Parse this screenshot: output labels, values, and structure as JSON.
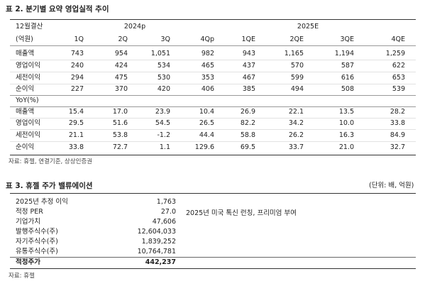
{
  "table2": {
    "title": "표 2. 분기별 요약 영업실적 추이",
    "header": {
      "fiscal": "12월결산",
      "unit": "(억원)",
      "groups": [
        "2024p",
        "2025E"
      ],
      "quarters": [
        "1Q",
        "2Q",
        "3Q",
        "4Qp",
        "1QE",
        "2QE",
        "3QE",
        "4QE"
      ]
    },
    "rows": [
      {
        "label": "매출액",
        "values": [
          "743",
          "954",
          "1,051",
          "982",
          "943",
          "1,165",
          "1,194",
          "1,259"
        ]
      },
      {
        "label": "영업이익",
        "values": [
          "240",
          "424",
          "534",
          "465",
          "437",
          "570",
          "587",
          "622"
        ]
      },
      {
        "label": "세전이익",
        "values": [
          "294",
          "475",
          "530",
          "353",
          "467",
          "599",
          "616",
          "653"
        ]
      },
      {
        "label": "순이익",
        "values": [
          "227",
          "370",
          "420",
          "406",
          "385",
          "494",
          "508",
          "539"
        ]
      }
    ],
    "yoy_label": "YoY(%)",
    "yoy_rows": [
      {
        "label": "매출액",
        "values": [
          "15.4",
          "17.0",
          "23.9",
          "10.4",
          "26.9",
          "22.1",
          "13.5",
          "28.2"
        ]
      },
      {
        "label": "영업이익",
        "values": [
          "29.5",
          "51.6",
          "54.5",
          "26.5",
          "82.2",
          "34.2",
          "10.0",
          "33.8"
        ]
      },
      {
        "label": "세전이익",
        "values": [
          "21.1",
          "53.8",
          "-1.2",
          "44.4",
          "58.8",
          "26.2",
          "16.3",
          "84.9"
        ]
      },
      {
        "label": "순이익",
        "values": [
          "33.8",
          "72.7",
          "1.1",
          "129.6",
          "69.5",
          "33.7",
          "21.0",
          "32.7"
        ]
      }
    ],
    "source": "자료: 휴젤, 연결기준, 상상인증권"
  },
  "table3": {
    "title": "표 3. 휴젤 주가 밸류에이션",
    "unit": "(단위: 배, 억원)",
    "rows": [
      {
        "label": "2025년 추정 이익",
        "value": "1,763"
      },
      {
        "label": "적정 PER",
        "value": "27.0",
        "note": "2025년 미국 톡신 런칭, 프리미엄 부여"
      },
      {
        "label": "기업가치",
        "value": "47,606"
      },
      {
        "label": "발행주식수(주)",
        "value": "12,604,033"
      },
      {
        "label": "자기주식수(주)",
        "value": "1,839,252"
      },
      {
        "label": "유통주식수(주)",
        "value": "10,764,781"
      },
      {
        "label": "적정주가",
        "value": "442,237"
      }
    ],
    "source": "자료: 휴젤"
  }
}
